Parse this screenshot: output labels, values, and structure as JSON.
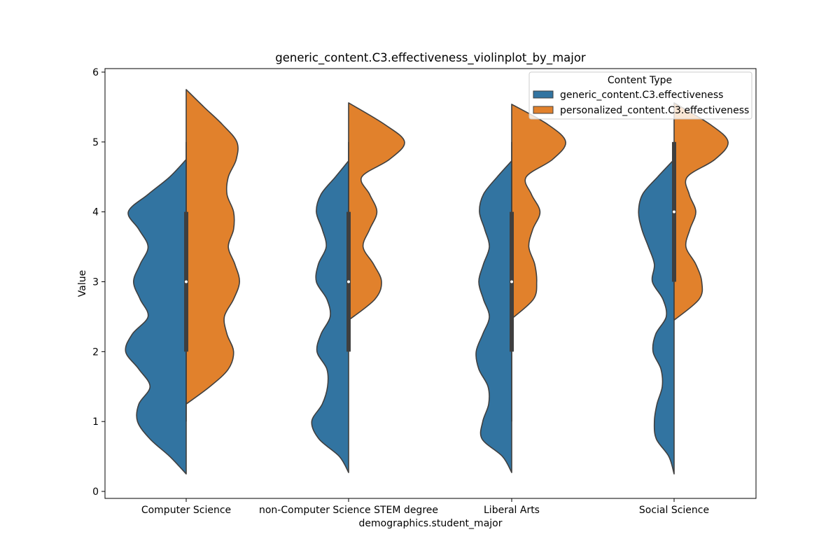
{
  "chart_data": {
    "type": "violin",
    "title": "generic_content.C3.effectiveness_violinplot_by_major",
    "xlabel": "demographics.student_major",
    "ylabel": "Value",
    "ylim": [
      -0.1,
      6.05
    ],
    "yticks": [
      0,
      1,
      2,
      3,
      4,
      5,
      6
    ],
    "categories": [
      "Computer Science",
      "non-Computer Science STEM degree",
      "Liberal Arts",
      "Social Science"
    ],
    "split": true,
    "legend": {
      "title": "Content Type",
      "placement": "upper-right",
      "entries": [
        "generic_content.C3.effectiveness",
        "personalized_content.C3.effectiveness"
      ]
    },
    "colors": {
      "generic": "#3274a1",
      "personalized": "#e1812c",
      "edge": "#3f3f3f",
      "box": "#3f3f3f",
      "median": "#ffffff"
    },
    "box_stats": [
      {
        "category": "Computer Science",
        "whisker_low": 1,
        "q1": 2,
        "median": 3,
        "q3": 4,
        "whisker_high": 5
      },
      {
        "category": "non-Computer Science STEM degree",
        "whisker_low": 2,
        "q1": 2,
        "median": 3,
        "q3": 4,
        "whisker_high": 5
      },
      {
        "category": "Liberal Arts",
        "whisker_low": 1,
        "q1": 2,
        "median": 3,
        "q3": 4,
        "whisker_high": 5
      },
      {
        "category": "Social Science",
        "whisker_low": 3,
        "q1": 3,
        "median": 4,
        "q3": 5,
        "whisker_high": 5
      }
    ],
    "series": [
      {
        "name": "generic_content.C3.effectiveness",
        "side": "left",
        "violins": [
          {
            "category": "Computer Science",
            "y": [
              0.25,
              0.5,
              0.75,
              1.0,
              1.25,
              1.5,
              1.75,
              2.0,
              2.25,
              2.5,
              2.75,
              3.0,
              3.25,
              3.5,
              3.75,
              4.0,
              4.25,
              4.5,
              4.75
            ],
            "density": [
              0.0,
              0.25,
              0.55,
              0.74,
              0.72,
              0.55,
              0.72,
              0.92,
              0.82,
              0.58,
              0.7,
              0.8,
              0.7,
              0.58,
              0.72,
              0.88,
              0.58,
              0.25,
              0.0
            ]
          },
          {
            "category": "non-Computer Science STEM degree",
            "y": [
              0.27,
              0.5,
              0.75,
              1.0,
              1.25,
              1.5,
              1.75,
              2.0,
              2.25,
              2.5,
              2.75,
              3.0,
              3.25,
              3.5,
              3.75,
              4.0,
              4.25,
              4.5,
              4.73
            ],
            "density": [
              0.0,
              0.14,
              0.45,
              0.56,
              0.4,
              0.32,
              0.33,
              0.48,
              0.42,
              0.28,
              0.33,
              0.49,
              0.46,
              0.34,
              0.4,
              0.49,
              0.42,
              0.2,
              0.0
            ]
          },
          {
            "category": "Liberal Arts",
            "y": [
              0.27,
              0.5,
              0.75,
              1.0,
              1.25,
              1.5,
              1.75,
              2.0,
              2.25,
              2.5,
              2.75,
              3.0,
              3.25,
              3.5,
              3.75,
              4.0,
              4.25,
              4.5,
              4.73
            ],
            "density": [
              0.0,
              0.14,
              0.45,
              0.44,
              0.35,
              0.36,
              0.5,
              0.54,
              0.44,
              0.34,
              0.43,
              0.5,
              0.43,
              0.34,
              0.41,
              0.49,
              0.43,
              0.22,
              0.0
            ]
          },
          {
            "category": "Social Science",
            "y": [
              0.25,
              0.5,
              0.75,
              1.0,
              1.25,
              1.5,
              1.75,
              2.0,
              2.25,
              2.5,
              2.75,
              3.0,
              3.25,
              3.5,
              3.75,
              4.0,
              4.25,
              4.5,
              4.75
            ],
            "density": [
              0.0,
              0.08,
              0.27,
              0.3,
              0.26,
              0.18,
              0.2,
              0.32,
              0.28,
              0.12,
              0.17,
              0.33,
              0.3,
              0.39,
              0.49,
              0.54,
              0.48,
              0.25,
              0.0
            ]
          }
        ]
      },
      {
        "name": "personalized_content.C3.effectiveness",
        "side": "right",
        "violins": [
          {
            "category": "Computer Science",
            "y": [
              1.25,
              1.5,
              1.75,
              2.0,
              2.25,
              2.5,
              2.75,
              3.0,
              3.25,
              3.5,
              3.75,
              4.0,
              4.25,
              4.5,
              4.75,
              5.0,
              5.25,
              5.5,
              5.75
            ],
            "density": [
              0.0,
              0.36,
              0.64,
              0.72,
              0.62,
              0.58,
              0.72,
              0.81,
              0.74,
              0.64,
              0.72,
              0.72,
              0.62,
              0.64,
              0.76,
              0.77,
              0.55,
              0.27,
              0.0
            ]
          },
          {
            "category": "non-Computer Science STEM degree",
            "y": [
              2.45,
              2.75,
              3.0,
              3.25,
              3.5,
              3.75,
              4.0,
              4.25,
              4.5,
              4.75,
              5.0,
              5.25,
              5.56
            ],
            "density": [
              0.0,
              0.4,
              0.5,
              0.38,
              0.22,
              0.32,
              0.43,
              0.32,
              0.2,
              0.62,
              0.85,
              0.55,
              0.0
            ]
          },
          {
            "category": "Liberal Arts",
            "y": [
              2.47,
              2.75,
              3.0,
              3.25,
              3.5,
              3.75,
              4.0,
              4.25,
              4.5,
              4.75,
              5.0,
              5.25,
              5.54
            ],
            "density": [
              0.0,
              0.33,
              0.38,
              0.35,
              0.26,
              0.32,
              0.43,
              0.3,
              0.22,
              0.62,
              0.82,
              0.55,
              0.0
            ]
          },
          {
            "category": "Social Science",
            "y": [
              2.45,
              2.75,
              3.0,
              3.25,
              3.5,
              3.75,
              4.0,
              4.25,
              4.5,
              4.75,
              5.0,
              5.25,
              5.56
            ],
            "density": [
              0.0,
              0.38,
              0.42,
              0.33,
              0.18,
              0.24,
              0.33,
              0.23,
              0.2,
              0.62,
              0.82,
              0.55,
              0.0
            ]
          }
        ]
      }
    ]
  }
}
